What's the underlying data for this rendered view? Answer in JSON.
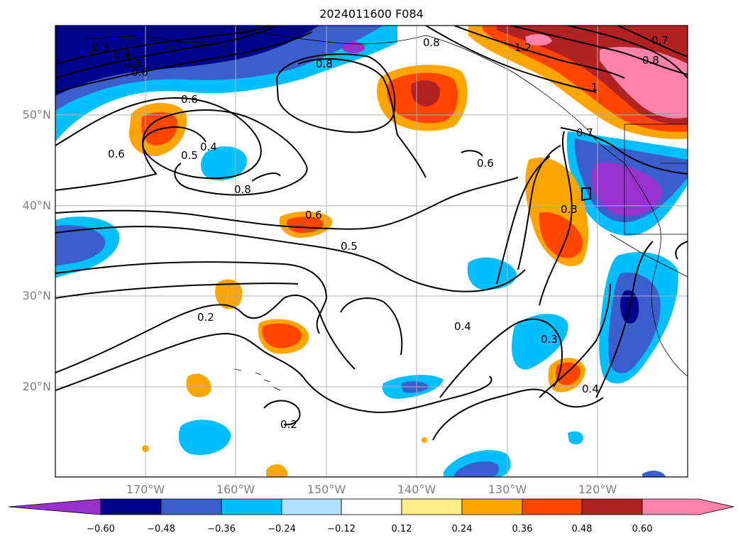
{
  "title": "2024011600 F084",
  "lat_labels": [
    "50°N",
    "40°N",
    "30°N",
    "20°N"
  ],
  "lon_labels": [
    "170°W",
    "160°W",
    "150°W",
    "140°W",
    "130°W",
    "120°W"
  ],
  "contour_labels": [
    "0.3",
    "0.4",
    "0.5",
    "0.6",
    "0.8",
    "0.6",
    "0.4",
    "0.5",
    "0.6",
    "0.8",
    "0.6",
    "0.5",
    "0.4",
    "0.2",
    "0.2",
    "0.8",
    "1.2",
    "0.7",
    "0.8",
    "1",
    "0.7",
    "0.6",
    "0.3",
    "0.3",
    "0.4"
  ],
  "colorbar": {
    "ticks": [
      "−0.60",
      "−0.48",
      "−0.36",
      "−0.24",
      "−0.12",
      "0.12",
      "0.24",
      "0.36",
      "0.48",
      "0.60"
    ],
    "colors": [
      "#9932cc",
      "#00008b",
      "#3a5fcd",
      "#00bfff",
      "#b0e2ff",
      "#ffffff",
      "#ffec8b",
      "#ffa500",
      "#ff4500",
      "#b22222",
      "#ff82ab"
    ]
  }
}
